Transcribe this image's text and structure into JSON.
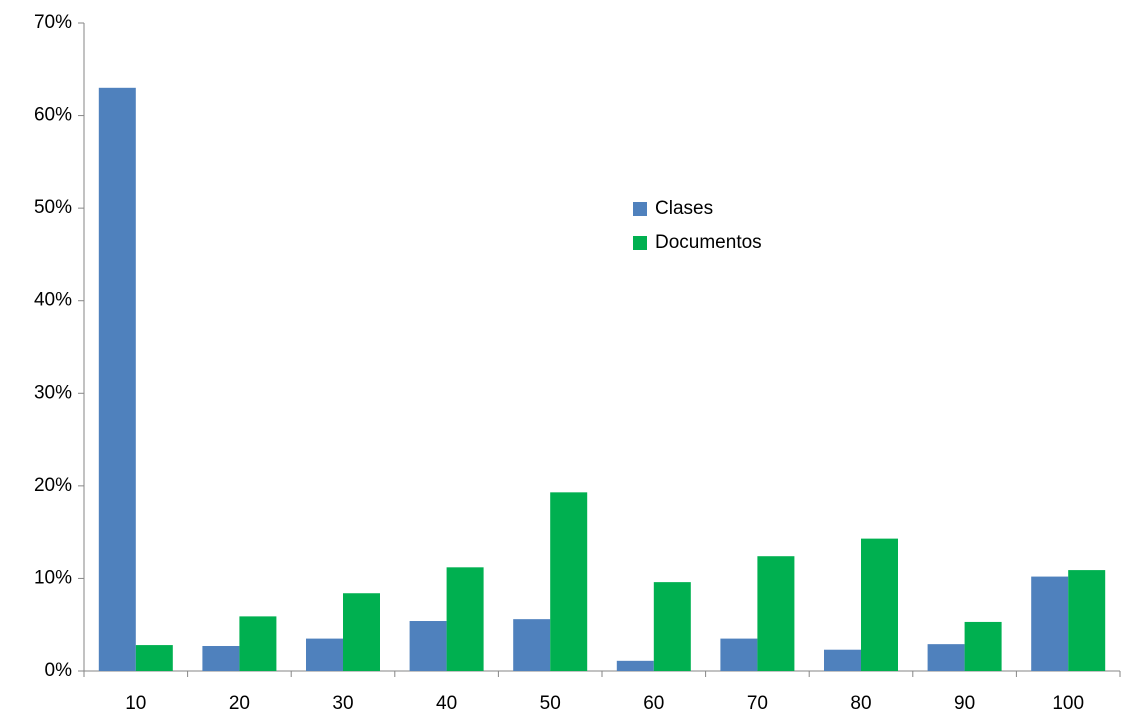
{
  "chart_data": {
    "type": "bar",
    "categories": [
      "10",
      "20",
      "30",
      "40",
      "50",
      "60",
      "70",
      "80",
      "90",
      "100"
    ],
    "series": [
      {
        "name": "Clases",
        "color": "#4f81bd",
        "values": [
          63.0,
          2.7,
          3.5,
          5.4,
          5.6,
          1.1,
          3.5,
          2.3,
          2.9,
          10.2
        ]
      },
      {
        "name": "Documentos",
        "color": "#00b050",
        "values": [
          2.8,
          5.9,
          8.4,
          11.2,
          19.3,
          9.6,
          12.4,
          14.3,
          5.3,
          10.9
        ]
      }
    ],
    "ylim": [
      0,
      70
    ],
    "yticks": [
      {
        "value": 0,
        "label": "0%"
      },
      {
        "value": 10,
        "label": "10%"
      },
      {
        "value": 20,
        "label": "20%"
      },
      {
        "value": 30,
        "label": "30%"
      },
      {
        "value": 40,
        "label": "40%"
      },
      {
        "value": 50,
        "label": "50%"
      },
      {
        "value": 60,
        "label": "60%"
      },
      {
        "value": 70,
        "label": "70%"
      }
    ],
    "grid": false,
    "legend": "center"
  }
}
